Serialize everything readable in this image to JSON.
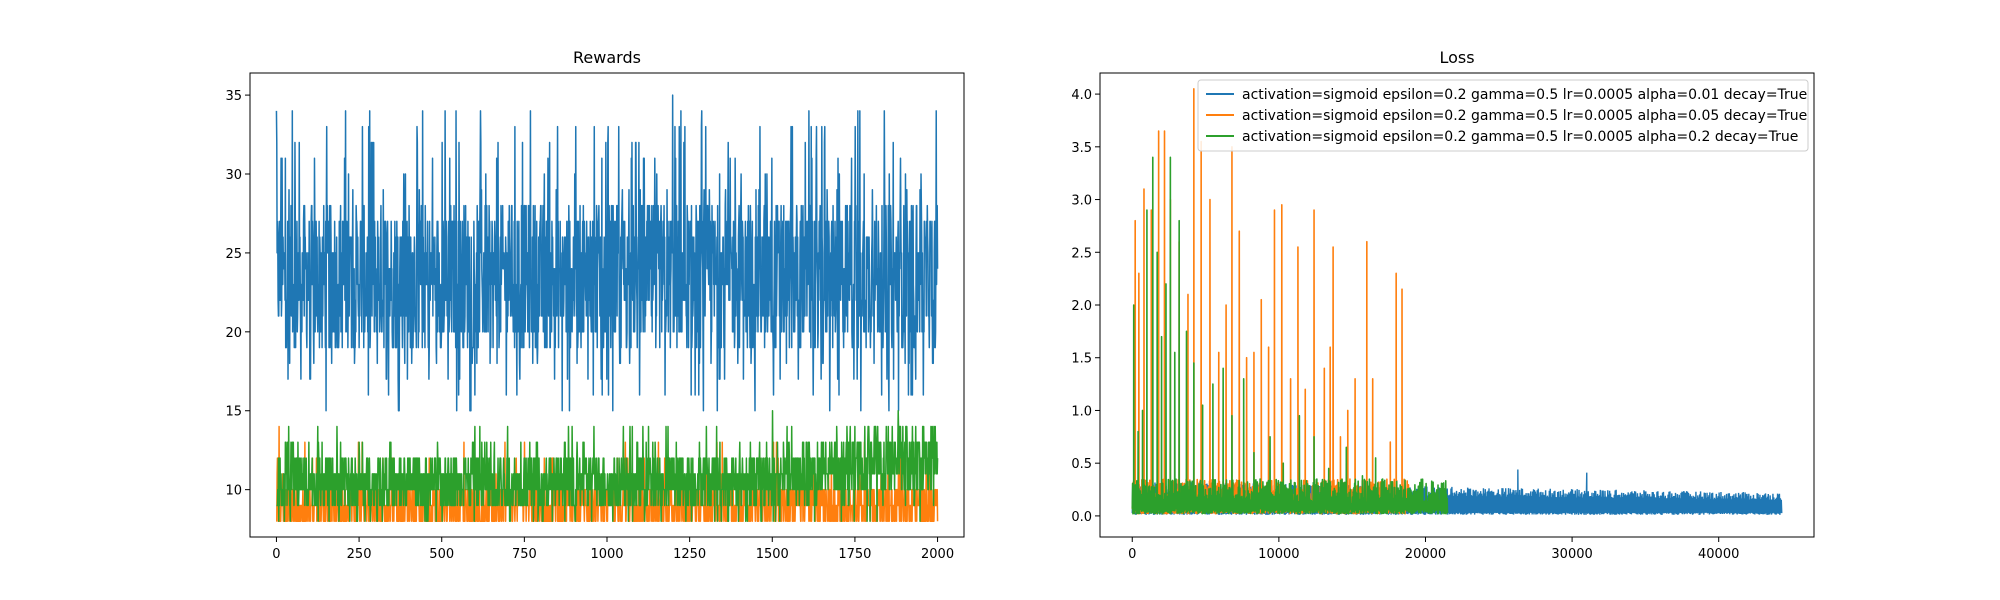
{
  "chart_data": [
    {
      "type": "line",
      "title": "Rewards",
      "xlabel": "",
      "ylabel": "",
      "xlim": [
        -80,
        2080
      ],
      "ylim": [
        7,
        36.4
      ],
      "xticks": [
        0,
        250,
        500,
        750,
        1000,
        1250,
        1500,
        1750,
        2000
      ],
      "xtick_labels": [
        "0",
        "250",
        "500",
        "750",
        "1000",
        "1250",
        "1500",
        "1750",
        "2000"
      ],
      "yticks": [
        10,
        15,
        20,
        25,
        30,
        35
      ],
      "ytick_labels": [
        "10",
        "15",
        "20",
        "25",
        "30",
        "35"
      ],
      "grid": false,
      "legend": false,
      "series": [
        {
          "color": "#1f77b4",
          "n_points": 2000,
          "x_range": [
            0,
            2000
          ],
          "typical_range": [
            19,
            28
          ],
          "observed_min": 15,
          "observed_max": 35,
          "peaks": [
            [
              0,
              34
            ],
            [
              14,
              31
            ],
            [
              48,
              34
            ],
            [
              260,
              33
            ],
            [
              1198,
              35
            ],
            [
              1560,
              33
            ],
            [
              1750,
              33
            ],
            [
              1995,
              34
            ]
          ]
        },
        {
          "color": "#ff7f0e",
          "n_points": 2000,
          "x_range": [
            0,
            2000
          ],
          "typical_range": [
            8,
            10
          ],
          "observed_min": 8,
          "observed_max": 14,
          "peaks": [
            [
              8,
              14
            ],
            [
              5,
              12
            ],
            [
              160,
              12
            ],
            [
              350,
              12
            ],
            [
              1480,
              12
            ],
            [
              1700,
              12
            ]
          ]
        },
        {
          "color": "#2ca02c",
          "n_points": 2000,
          "x_range": [
            0,
            2000
          ],
          "typical_range": [
            9,
            12
          ],
          "observed_min": 8,
          "observed_max": 15,
          "trend_end_typical": [
            10,
            14
          ],
          "peaks": [
            [
              615,
              14
            ],
            [
              1300,
              14
            ],
            [
              1500,
              15
            ],
            [
              1880,
              15
            ]
          ]
        }
      ]
    },
    {
      "type": "line",
      "title": "Loss",
      "xlabel": "",
      "ylabel": "",
      "xlim": [
        -2200,
        46500
      ],
      "ylim": [
        -0.2,
        4.2
      ],
      "xticks": [
        0,
        10000,
        20000,
        30000,
        40000
      ],
      "xtick_labels": [
        "0",
        "10000",
        "20000",
        "30000",
        "40000"
      ],
      "yticks": [
        0.0,
        0.5,
        1.0,
        1.5,
        2.0,
        2.5,
        3.0,
        3.5,
        4.0
      ],
      "ytick_labels": [
        "0.0",
        "0.5",
        "1.0",
        "1.5",
        "2.0",
        "2.5",
        "3.0",
        "3.5",
        "4.0"
      ],
      "grid": false,
      "legend": "top-right",
      "series": [
        {
          "name": "activation=sigmoid epsilon=0.2 gamma=0.5 lr=0.0005 alpha=0.01 decay=True",
          "color": "#1f77b4",
          "x_range": [
            0,
            44300
          ],
          "band_top_start": 0.3,
          "band_top_end": 0.2,
          "spikes": [
            [
              150,
              0.62
            ],
            [
              26300,
              0.44
            ],
            [
              31000,
              0.41
            ]
          ]
        },
        {
          "name": "activation=sigmoid epsilon=0.2 gamma=0.5 lr=0.0005 alpha=0.05 decay=True",
          "color": "#ff7f0e",
          "x_range": [
            0,
            18900
          ],
          "spikes": [
            [
              200,
              2.8
            ],
            [
              450,
              2.3
            ],
            [
              800,
              3.1
            ],
            [
              1300,
              2.9
            ],
            [
              1800,
              3.65
            ],
            [
              2200,
              3.65
            ],
            [
              2600,
              3.0
            ],
            [
              3200,
              2.6
            ],
            [
              3800,
              2.1
            ],
            [
              4200,
              4.05
            ],
            [
              4700,
              3.55
            ],
            [
              5300,
              3.0
            ],
            [
              5900,
              1.55
            ],
            [
              6400,
              2.0
            ],
            [
              6800,
              3.5
            ],
            [
              7300,
              2.7
            ],
            [
              7800,
              1.5
            ],
            [
              8300,
              1.55
            ],
            [
              8800,
              2.05
            ],
            [
              9300,
              1.6
            ],
            [
              9700,
              2.9
            ],
            [
              10200,
              2.95
            ],
            [
              10800,
              1.3
            ],
            [
              11300,
              2.55
            ],
            [
              11800,
              1.2
            ],
            [
              12400,
              2.9
            ],
            [
              13100,
              1.4
            ],
            [
              13500,
              1.6
            ],
            [
              13700,
              2.55
            ],
            [
              14200,
              0.75
            ],
            [
              14700,
              1.0
            ],
            [
              15200,
              1.3
            ],
            [
              16000,
              2.6
            ],
            [
              16400,
              1.3
            ],
            [
              17600,
              0.7
            ],
            [
              18000,
              2.3
            ],
            [
              18400,
              2.15
            ]
          ]
        },
        {
          "name": "activation=sigmoid epsilon=0.2 gamma=0.5 lr=0.0005 alpha=0.2 decay=True",
          "color": "#2ca02c",
          "x_range": [
            0,
            21500
          ],
          "spikes": [
            [
              100,
              2.0
            ],
            [
              400,
              0.8
            ],
            [
              700,
              1.0
            ],
            [
              1000,
              2.9
            ],
            [
              1400,
              3.4
            ],
            [
              1700,
              2.5
            ],
            [
              2000,
              1.7
            ],
            [
              2300,
              2.2
            ],
            [
              2600,
              3.4
            ],
            [
              2900,
              1.55
            ],
            [
              3200,
              2.8
            ],
            [
              3700,
              1.75
            ],
            [
              4200,
              1.45
            ],
            [
              4800,
              1.05
            ],
            [
              5500,
              1.25
            ],
            [
              6200,
              1.4
            ],
            [
              6800,
              0.95
            ],
            [
              7600,
              1.3
            ],
            [
              8300,
              0.6
            ],
            [
              9400,
              0.75
            ],
            [
              10300,
              0.5
            ],
            [
              11400,
              0.95
            ],
            [
              12400,
              0.75
            ],
            [
              13400,
              0.45
            ],
            [
              14600,
              0.65
            ],
            [
              15700,
              0.38
            ],
            [
              16600,
              0.55
            ]
          ]
        }
      ]
    }
  ]
}
